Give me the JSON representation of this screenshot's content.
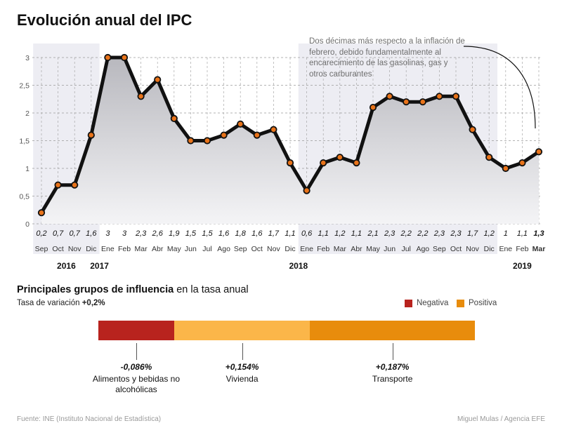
{
  "title": "Evolución anual del IPC",
  "annotation": "Dos décimas más respecto a la inflación de febrero, debido fundamentalmente al encarecimiento de las gasolinas, gas y otros carburantes",
  "colors": {
    "line": "#111111",
    "marker": "#e8731a",
    "area_top": "#b8b8be",
    "area_bottom": "#f4f4f6",
    "band": "#ededf3",
    "negative": "#b8231e",
    "vivienda": "#fbb649",
    "transporte": "#e88c0c"
  },
  "chart_data": {
    "type": "area",
    "yticks": [
      "0",
      "0,5",
      "1",
      "1,5",
      "2",
      "2,5",
      "3"
    ],
    "ylim": [
      0,
      3
    ],
    "grid": true,
    "months": [
      "Sep",
      "Oct",
      "Nov",
      "Dic",
      "Ene",
      "Feb",
      "Mar",
      "Abr",
      "May",
      "Jun",
      "Jul",
      "Ago",
      "Sep",
      "Oct",
      "Nov",
      "Dic",
      "Ene",
      "Feb",
      "Mar",
      "Abr",
      "May",
      "Jun",
      "Jul",
      "Ago",
      "Sep",
      "Oct",
      "Nov",
      "Dic",
      "Ene",
      "Feb",
      "Mar"
    ],
    "values": [
      0.2,
      0.7,
      0.7,
      1.6,
      3,
      3,
      2.3,
      2.6,
      1.9,
      1.5,
      1.5,
      1.6,
      1.8,
      1.6,
      1.7,
      1.1,
      0.6,
      1.1,
      1.2,
      1.1,
      2.1,
      2.3,
      2.2,
      2.2,
      2.3,
      2.3,
      1.7,
      1.2,
      1,
      1.1,
      1.3
    ],
    "value_labels": [
      "0,2",
      "0,7",
      "0,7",
      "1,6",
      "3",
      "3",
      "2,3",
      "2,6",
      "1,9",
      "1,5",
      "1,5",
      "1,6",
      "1,8",
      "1,6",
      "1,7",
      "1,1",
      "0,6",
      "1,1",
      "1,2",
      "1,1",
      "2,1",
      "2,3",
      "2,2",
      "2,2",
      "2,3",
      "2,3",
      "1,7",
      "1,2",
      "1",
      "1,1",
      "1,3"
    ],
    "years": [
      {
        "label": "2016",
        "start": 0,
        "end": 3
      },
      {
        "label": "2017",
        "start": 4,
        "end": 15
      },
      {
        "label": "2018",
        "start": 16,
        "end": 27
      },
      {
        "label": "2019",
        "start": 28,
        "end": 30
      }
    ],
    "highlight_last": true
  },
  "groups": {
    "heading_bold": "Principales grupos de influencia",
    "heading_rest": " en la tasa anual",
    "variation_label": "Tasa de variación ",
    "variation_value": "+0,2%",
    "legend": [
      {
        "label": "Negativa",
        "color": "#b8231e"
      },
      {
        "label": "Positiva",
        "color": "#e88c0c"
      }
    ],
    "segments": [
      {
        "value": "-0,086%",
        "label": "Alimentos y bebidas no alcohólicas",
        "share": 0.086,
        "color": "#b8231e"
      },
      {
        "value": "+0,154%",
        "label": "Vivienda",
        "share": 0.154,
        "color": "#fbb649"
      },
      {
        "value": "+0,187%",
        "label": "Transporte",
        "share": 0.187,
        "color": "#e88c0c"
      }
    ]
  },
  "source": "Fuente: INE (Instituto Nacional de Estadística)",
  "credit": "Miguel Mulas / Agencia EFE"
}
